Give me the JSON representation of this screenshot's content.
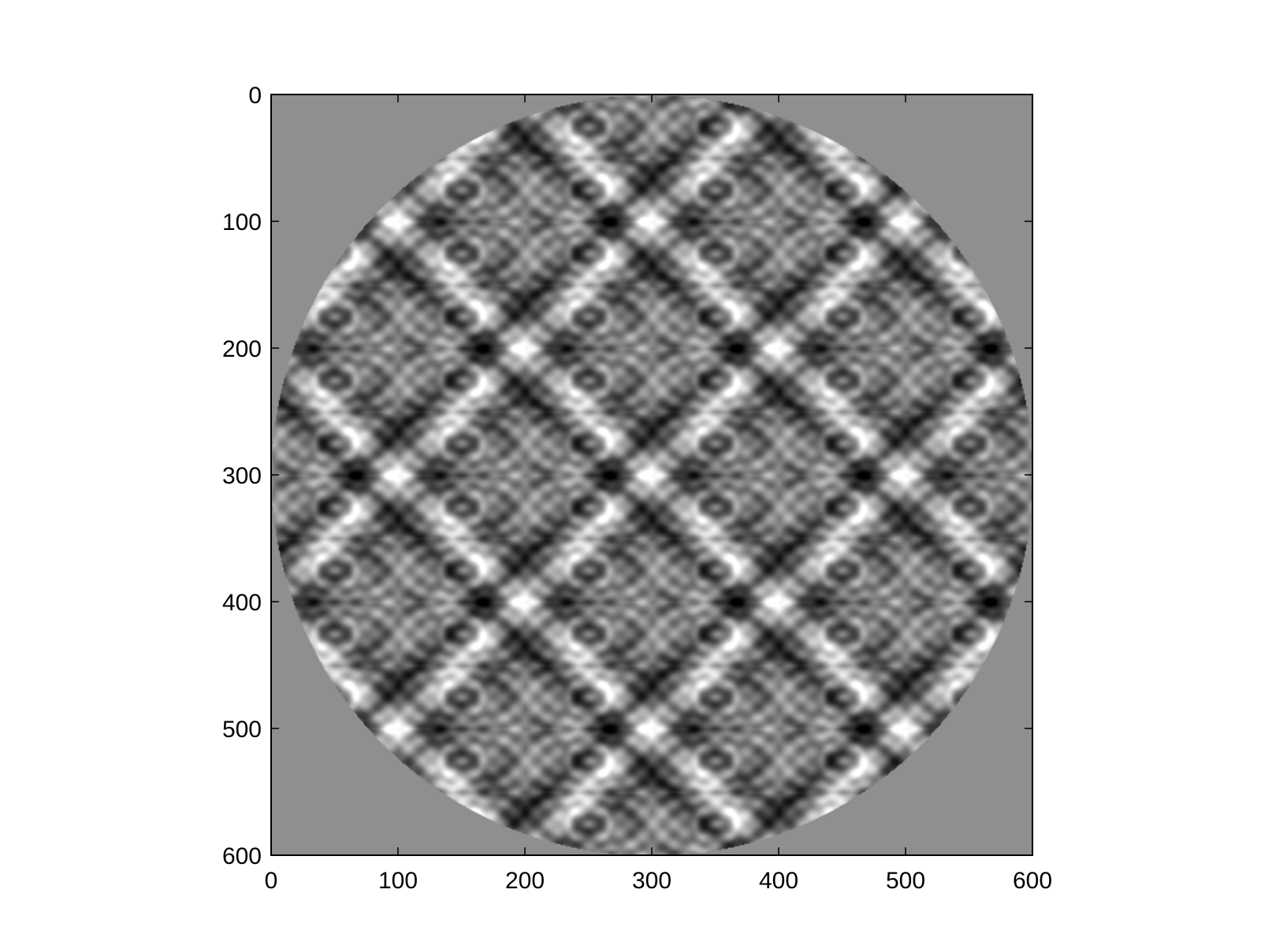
{
  "chart_data": {
    "type": "heatmap",
    "title": "",
    "xlabel": "",
    "ylabel": "",
    "xlim": [
      0,
      600
    ],
    "ylim": [
      600,
      0
    ],
    "x_ticks": [
      0,
      100,
      200,
      300,
      400,
      500,
      600
    ],
    "y_ticks": [
      0,
      100,
      200,
      300,
      400,
      500,
      600
    ],
    "x_tick_labels": [
      "0",
      "100",
      "200",
      "300",
      "400",
      "500",
      "600"
    ],
    "y_tick_labels": [
      "0",
      "100",
      "200",
      "300",
      "400",
      "500",
      "600"
    ],
    "colormap": "gray",
    "image_size": [
      600,
      600
    ],
    "mask": {
      "shape": "circle",
      "center": [
        300,
        300
      ],
      "radius": 300
    },
    "pattern": {
      "description": "quasi-periodic symmetric interference pattern",
      "cell_width": 100,
      "cell_height": 50
    },
    "colors": {
      "masked_fill": "#8f8f8f",
      "frame": "#000000",
      "background": "#ffffff"
    },
    "grid": false
  }
}
